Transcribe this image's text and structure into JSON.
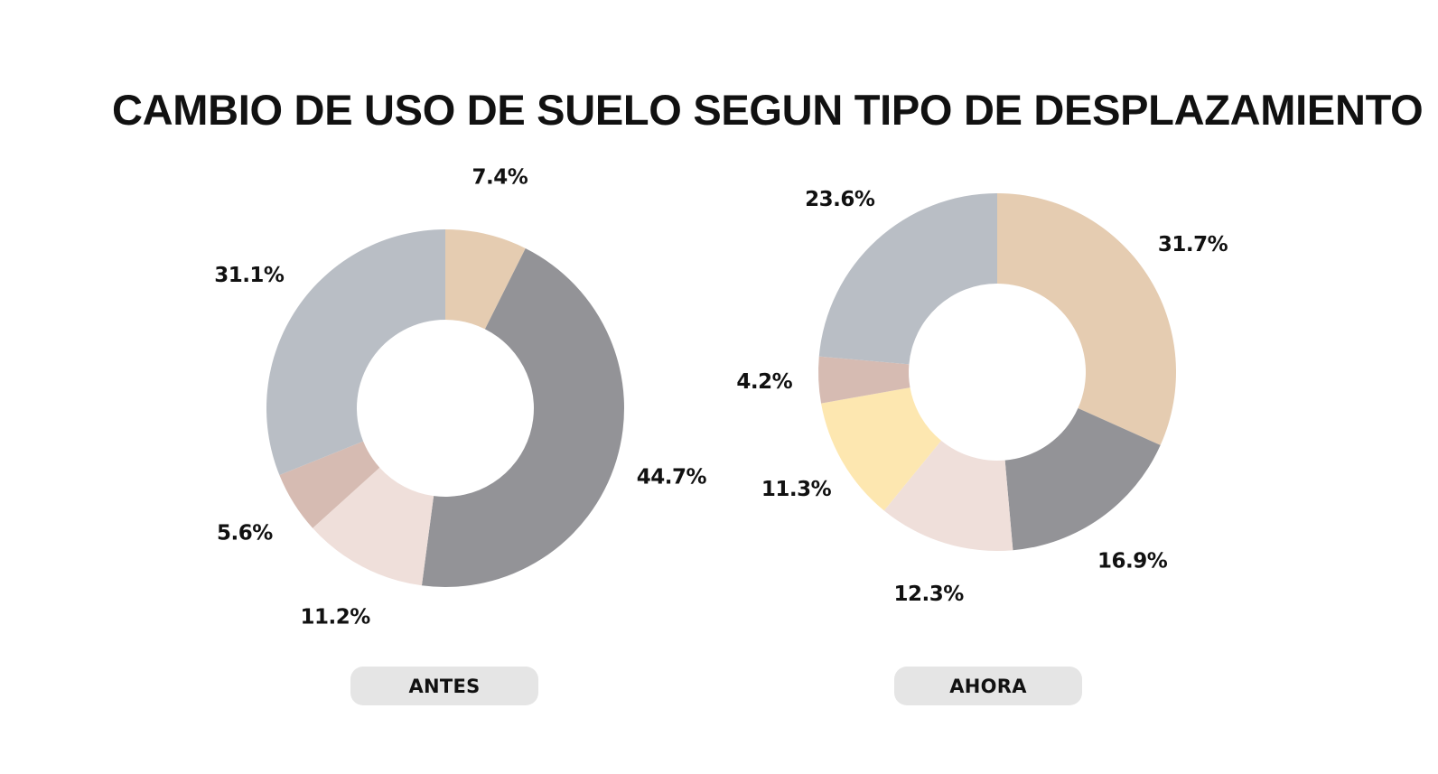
{
  "title": "CAMBIO DE USO DE SUELO SEGUN TIPO DE DESPLAZAMIENTO",
  "chart_data": [
    {
      "type": "pie",
      "variant": "donut",
      "caption": "ANTES",
      "start": "top, clockwise",
      "slices": [
        {
          "value": 7.4,
          "label": "7.4%",
          "color": "#e5ccb1"
        },
        {
          "value": 44.7,
          "label": "44.7%",
          "color": "#939397"
        },
        {
          "value": 11.2,
          "label": "11.2%",
          "color": "#efdfda"
        },
        {
          "value": 5.6,
          "label": "5.6%",
          "color": "#d6bbb2"
        },
        {
          "value": 31.1,
          "label": "31.1%",
          "color": "#b9bec5"
        }
      ]
    },
    {
      "type": "pie",
      "variant": "donut",
      "caption": "AHORA",
      "start": "top, clockwise",
      "slices": [
        {
          "value": 31.7,
          "label": "31.7%",
          "color": "#e5ccb1"
        },
        {
          "value": 16.9,
          "label": "16.9%",
          "color": "#939397"
        },
        {
          "value": 12.3,
          "label": "12.3%",
          "color": "#efdfda"
        },
        {
          "value": 11.3,
          "label": "11.3%",
          "color": "#fde7b0"
        },
        {
          "value": 4.2,
          "label": "4.2%",
          "color": "#d6bbb2"
        },
        {
          "value": 23.6,
          "label": "23.6%",
          "color": "#b9bec5"
        }
      ]
    }
  ]
}
